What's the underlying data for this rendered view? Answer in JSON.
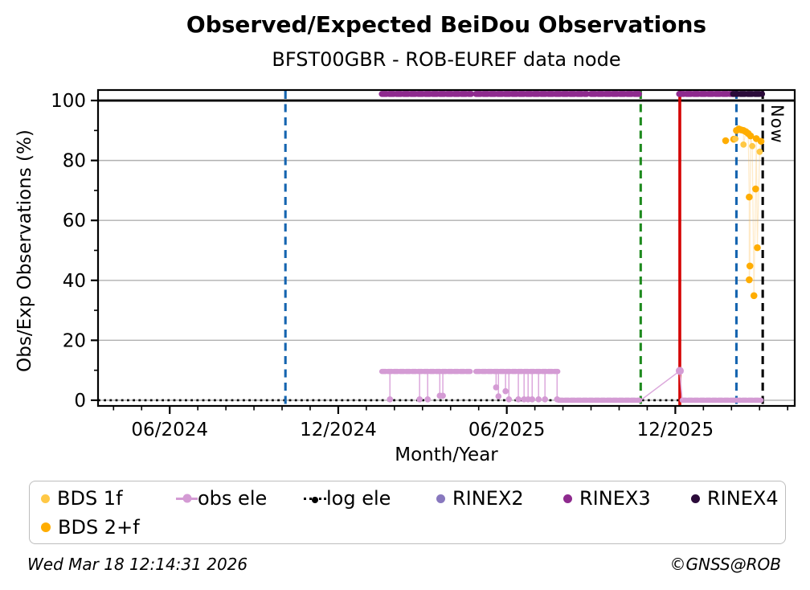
{
  "header": {
    "title": "Observed/Expected BeiDou Observations",
    "subtitle": "BFST00GBR - ROB-EUREF data node"
  },
  "annotations": {
    "now_label": "Now"
  },
  "footer": {
    "timestamp": "Wed Mar 18 12:14:31 2026",
    "copyright": "©GNSS@ROB"
  },
  "colors": {
    "bds_1f": "#FFC845",
    "bds_2f": "#FFAD00",
    "obs_ele": "#D49BD4",
    "obs_ele_spike": "#DCA8DC",
    "log_ele": "#000000",
    "rinex2": "#8878BE",
    "rinex3": "#8E2A8E",
    "rinex4": "#2B0B3A",
    "red_line": "#D40000",
    "blue_line": "#1565B0",
    "green_line": "#1E8A1E",
    "now_line": "#000000",
    "grid": "#B0B0B0",
    "bds_connector": "rgba(255,186,70,0.30)"
  },
  "legend": {
    "items": [
      {
        "key": "bds_1f",
        "label": "BDS 1f"
      },
      {
        "key": "obs_ele",
        "label": "obs ele"
      },
      {
        "key": "log_ele",
        "label": "log ele"
      },
      {
        "key": "rinex2",
        "label": "RINEX2"
      },
      {
        "key": "rinex3",
        "label": "RINEX3"
      },
      {
        "key": "rinex4",
        "label": "RINEX4"
      },
      {
        "key": "bds_2f",
        "label": "BDS 2+f"
      }
    ]
  },
  "chart_data": {
    "type": "line",
    "title": "Observed/Expected BeiDou Observations",
    "subtitle": "BFST00GBR - ROB-EUREF data node",
    "xlabel": "Month/Year",
    "ylabel": "Obs/Exp Observations (%)",
    "x_domain_decimal_year": [
      2024.204,
      2026.271
    ],
    "y_domain": [
      -1.9,
      103.5
    ],
    "grid": "horizontal-only",
    "y_major_ticks": [
      0,
      20,
      40,
      60,
      80,
      100
    ],
    "y_minor_ticks": [
      10,
      30,
      50,
      70,
      90
    ],
    "x_major_ticks": [
      {
        "year": 2024.4167,
        "label": "06/2024"
      },
      {
        "year": 2024.9167,
        "label": "12/2024"
      },
      {
        "year": 2025.4167,
        "label": "06/2025"
      },
      {
        "year": 2025.9167,
        "label": "12/2025"
      }
    ],
    "hundred_percent_line": 100,
    "reference_lines": [
      {
        "name": "blue-event-1",
        "x": 2024.76,
        "style": "dashed",
        "color_key": "blue_line"
      },
      {
        "name": "green-event",
        "x": 2025.814,
        "style": "dashed",
        "color_key": "green_line"
      },
      {
        "name": "red-event",
        "x": 2025.93,
        "style": "solid",
        "color_key": "red_line"
      },
      {
        "name": "blue-event-2",
        "x": 2026.098,
        "style": "dashed",
        "color_key": "blue_line"
      },
      {
        "name": "now-line",
        "x": 2026.176,
        "style": "dashed",
        "color_key": "now_line",
        "label": "Now"
      }
    ],
    "series": {
      "log_ele": {
        "style": "dotted",
        "y": 0,
        "x_start": 2024.204,
        "x_end": 2026.176
      },
      "rinex3": {
        "y": 102.2,
        "segments": [
          [
            2025.046,
            2025.311
          ],
          [
            2025.325,
            2025.654
          ],
          [
            2025.666,
            2025.814
          ],
          [
            2025.928,
            2026.088
          ]
        ]
      },
      "rinex4": {
        "y": 102.2,
        "segments": [
          [
            2026.088,
            2026.174
          ]
        ]
      },
      "rinex2": {
        "points": []
      },
      "obs_ele": {
        "flat_segments": [
          {
            "x1": 2025.046,
            "x2": 2025.311,
            "y": 9.6
          },
          {
            "x1": 2025.325,
            "x2": 2025.568,
            "y": 9.6
          },
          {
            "x1": 2025.571,
            "x2": 2025.811,
            "y": 0
          },
          {
            "x1": 2025.937,
            "x2": 2026.171,
            "y": 0
          }
        ],
        "spikes_from_y": 9.6,
        "spikes": [
          {
            "x": 2025.07,
            "y": 0.3
          },
          {
            "x": 2025.158,
            "y": 0.3
          },
          {
            "x": 2025.182,
            "y": 0.3
          },
          {
            "x": 2025.218,
            "y": 1.5
          },
          {
            "x": 2025.227,
            "y": 1.5
          },
          {
            "x": 2025.385,
            "y": 4.3
          },
          {
            "x": 2025.392,
            "y": 1.3
          },
          {
            "x": 2025.413,
            "y": 3.0
          },
          {
            "x": 2025.423,
            "y": 0.3
          },
          {
            "x": 2025.451,
            "y": 0.3
          },
          {
            "x": 2025.468,
            "y": 0.3
          },
          {
            "x": 2025.48,
            "y": 0.3
          },
          {
            "x": 2025.492,
            "y": 0.3
          },
          {
            "x": 2025.511,
            "y": 0.3
          },
          {
            "x": 2025.53,
            "y": 0.3
          },
          {
            "x": 2025.566,
            "y": 0.3
          }
        ],
        "jump": [
          {
            "x": 2025.814,
            "y": 0
          },
          {
            "x": 2025.93,
            "y": 9.8
          },
          {
            "x": 2025.937,
            "y": 0
          }
        ]
      },
      "bds_2f": {
        "points": [
          [
            2026.066,
            86.6
          ],
          [
            2026.09,
            87.1
          ],
          [
            2026.098,
            90.0
          ],
          [
            2026.105,
            90.5
          ],
          [
            2026.112,
            90.2
          ],
          [
            2026.119,
            90.0
          ],
          [
            2026.126,
            89.6
          ],
          [
            2026.133,
            89.0
          ],
          [
            2026.14,
            88.2
          ],
          [
            2026.157,
            87.3
          ],
          [
            2026.171,
            86.4
          ],
          [
            2026.155,
            70.5
          ],
          [
            2026.136,
            67.8
          ],
          [
            2026.16,
            50.9
          ],
          [
            2026.138,
            44.8
          ],
          [
            2026.136,
            40.2
          ],
          [
            2026.15,
            34.9
          ]
        ]
      },
      "bds_1f": {
        "points": [
          [
            2026.095,
            87.2
          ],
          [
            2026.119,
            85.3
          ],
          [
            2026.145,
            84.8
          ],
          [
            2026.167,
            82.9
          ]
        ]
      }
    }
  }
}
